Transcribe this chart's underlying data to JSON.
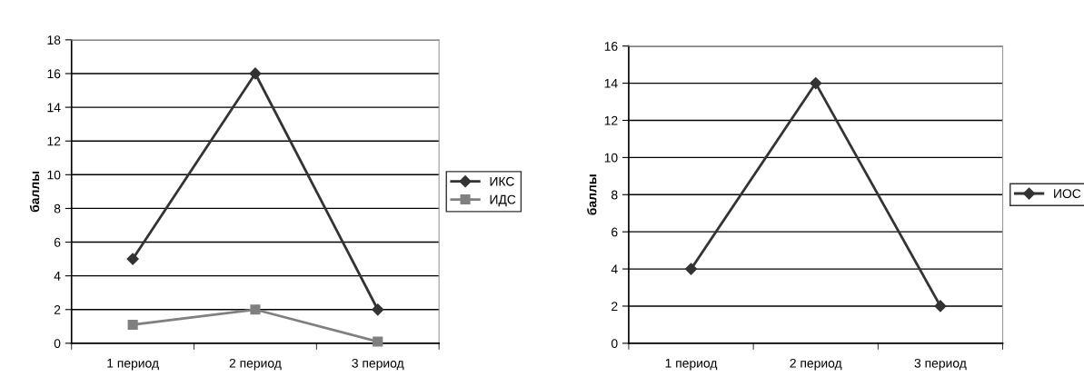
{
  "chart_data": [
    {
      "type": "line",
      "ylabel": "баллы",
      "categories": [
        "1 период",
        "2 период",
        "3 период"
      ],
      "series": [
        {
          "name": "ИКС",
          "color": "#333333",
          "values": [
            5,
            16,
            2
          ],
          "marker": "diamond"
        },
        {
          "name": "ИДС",
          "color": "#808080",
          "values": [
            1.1,
            2,
            0.1
          ],
          "marker": "square"
        }
      ],
      "ylim": [
        0,
        18
      ],
      "yticks": [
        0,
        2,
        4,
        6,
        8,
        10,
        12,
        14,
        16,
        18
      ],
      "grid": "y",
      "legend": "right",
      "line_style": "solid"
    },
    {
      "type": "line",
      "ylabel": "баллы",
      "categories": [
        "1 период",
        "2 период",
        "3 период"
      ],
      "series": [
        {
          "name": "ИОС",
          "color": "#333333",
          "values": [
            4,
            14,
            2
          ],
          "marker": "diamond"
        }
      ],
      "ylim": [
        0,
        16
      ],
      "yticks": [
        0,
        2,
        4,
        6,
        8,
        10,
        12,
        14,
        16
      ],
      "grid": "y",
      "legend": "right",
      "line_style": "solid"
    }
  ]
}
